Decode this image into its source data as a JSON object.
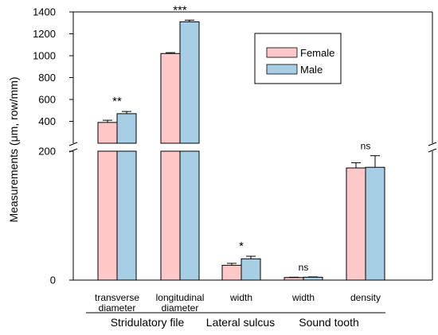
{
  "chart_data": {
    "type": "bar",
    "ylabel": "Measurements (μm, row/mm)",
    "y_axis": "broken",
    "upper_segment": {
      "ylim": [
        200,
        1400
      ],
      "ticks": [
        "1400",
        "1200",
        "1000",
        "800",
        "600",
        "400",
        "200"
      ]
    },
    "lower_segment": {
      "ylim": [
        0,
        200
      ],
      "ticks": [
        "0",
        "200"
      ]
    },
    "colors": {
      "Female": "#ffc8c8",
      "Male": "#a6cfe6"
    },
    "legend": {
      "position": "top-right",
      "entries": [
        "Female",
        "Male"
      ]
    },
    "categories": [
      {
        "line1": "transverse",
        "line2": "diameter"
      },
      {
        "line1": "longitudinal",
        "line2": "diameter"
      },
      {
        "line1": "width",
        "line2": ""
      },
      {
        "line1": "width",
        "line2": ""
      },
      {
        "line1": "density",
        "line2": ""
      }
    ],
    "series": [
      {
        "name": "Female",
        "values": [
          390,
          1020,
          23,
          4,
          174
        ],
        "errors": [
          20,
          8,
          3,
          0.5,
          8
        ]
      },
      {
        "name": "Male",
        "values": [
          470,
          1310,
          33,
          4.5,
          175
        ],
        "errors": [
          20,
          15,
          4,
          0.5,
          18
        ]
      }
    ],
    "significance": [
      "**",
      "***",
      "*",
      "ns",
      "ns"
    ],
    "groups": [
      {
        "label": "Stridulatory file",
        "start": 0,
        "end": 1
      },
      {
        "label": "Lateral sulcus",
        "start": 2,
        "end": 2
      },
      {
        "label": "Sound tooth",
        "start": 3,
        "end": 4
      }
    ]
  }
}
